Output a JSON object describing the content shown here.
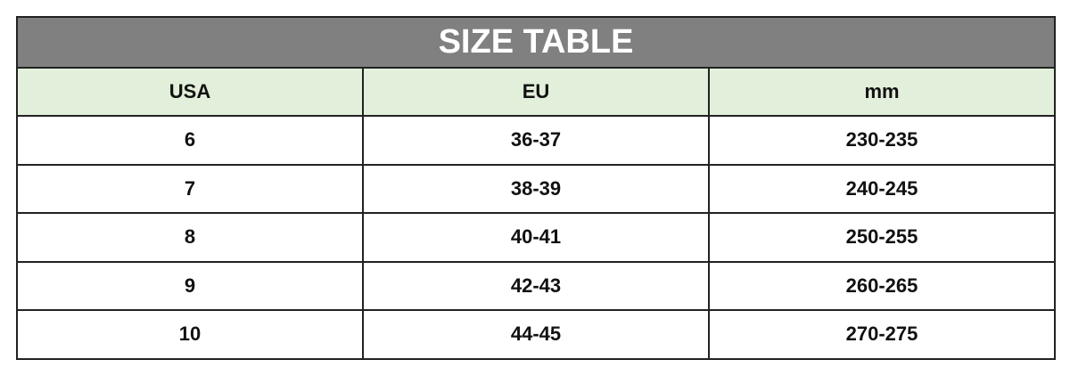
{
  "title": "SIZE TABLE",
  "columns": [
    "USA",
    "EU",
    "mm"
  ],
  "rows": [
    [
      "6",
      "36-37",
      "230-235"
    ],
    [
      "7",
      "38-39",
      "240-245"
    ],
    [
      "8",
      "40-41",
      "250-255"
    ],
    [
      "9",
      "42-43",
      "260-265"
    ],
    [
      "10",
      "44-45",
      "270-275"
    ]
  ],
  "colors": {
    "title_bg": "#808080",
    "header_bg": "#e2efda"
  }
}
